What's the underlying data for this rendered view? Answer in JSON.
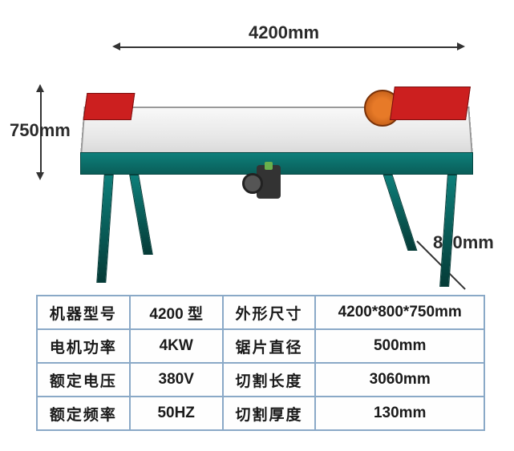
{
  "dimensions": {
    "length_label": "4200mm",
    "height_label": "750mm",
    "width_label": "800mm"
  },
  "colors": {
    "frame": "#0d7f7a",
    "guard": "#cc1f1f",
    "blade": "#e77a28",
    "table_surface": "#e8e8e8",
    "border": "#8aa9c7",
    "text": "#1a1a1a"
  },
  "spec_rows": [
    {
      "l1": "机器型号",
      "v1": "4200 型",
      "l2": "外形尺寸",
      "v2": "4200*800*750mm"
    },
    {
      "l1": "电机功率",
      "v1": "4KW",
      "l2": "锯片直径",
      "v2": "500mm"
    },
    {
      "l1": "额定电压",
      "v1": "380V",
      "l2": "切割长度",
      "v2": "3060mm"
    },
    {
      "l1": "额定频率",
      "v1": "50HZ",
      "l2": "切割厚度",
      "v2": "130mm"
    }
  ],
  "table_fontsize": 19,
  "dim_fontsize": 22
}
